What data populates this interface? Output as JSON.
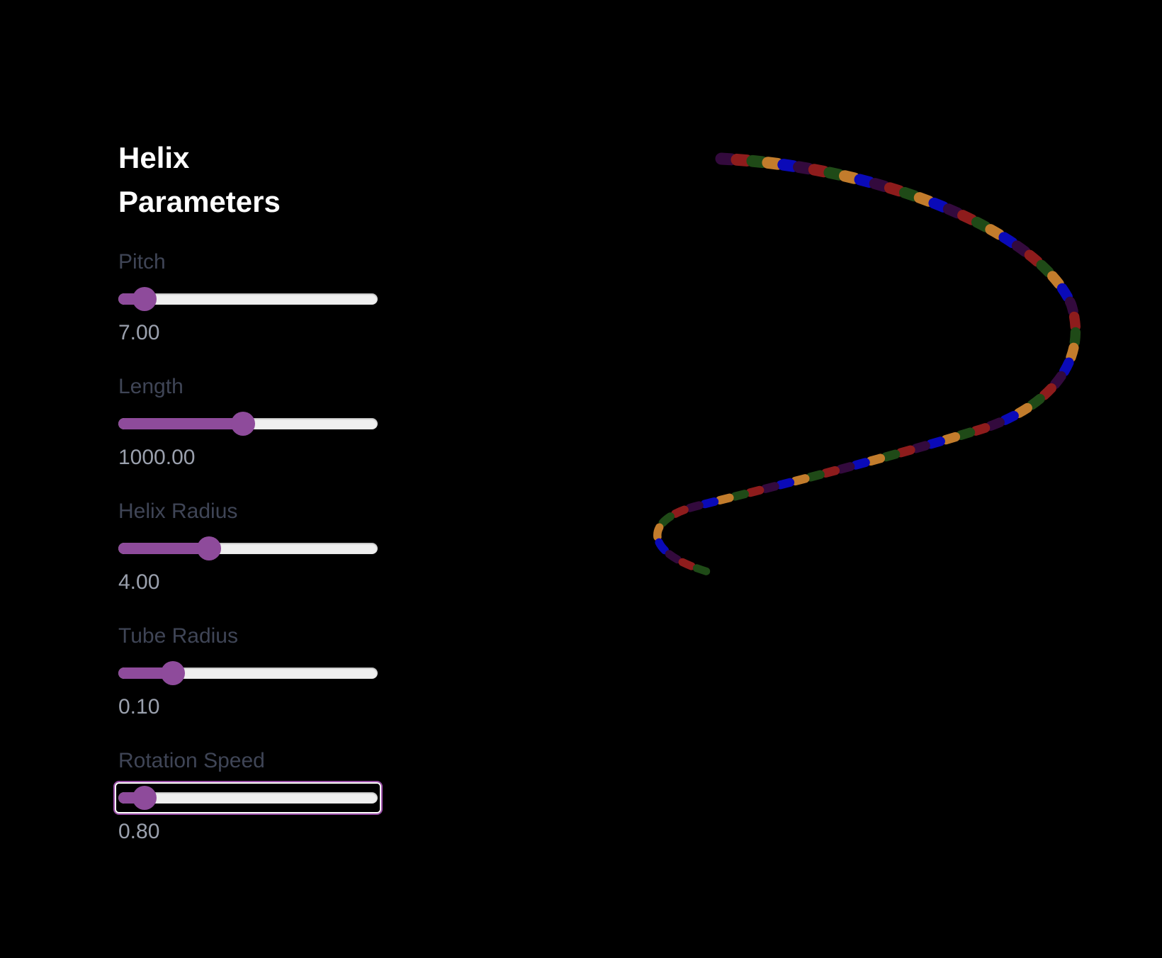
{
  "panel": {
    "title": "Helix Parameters"
  },
  "controls": [
    {
      "label": "Pitch",
      "value_text": "7.00",
      "fraction": 0.1
    },
    {
      "label": "Length",
      "value_text": "1000.00",
      "fraction": 0.48
    },
    {
      "label": "Helix Radius",
      "value_text": "4.00",
      "fraction": 0.35
    },
    {
      "label": "Tube Radius",
      "value_text": "0.10",
      "fraction": 0.21
    },
    {
      "label": "Rotation Speed",
      "value_text": "0.80",
      "fraction": 0.1,
      "focused": true
    }
  ],
  "colors": {
    "background": "#000000",
    "title": "#ffffff",
    "label": "#3f4556",
    "value": "#9aa0ad",
    "slider_accent": "#8e4b9b",
    "slider_track": "#efefef",
    "helix_segments": [
      "#330a3d",
      "#8e1c1c",
      "#1f4a17",
      "#c27c2c",
      "#0a0ab8"
    ]
  }
}
